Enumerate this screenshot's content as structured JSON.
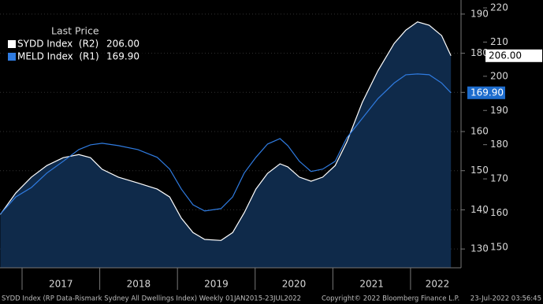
{
  "chart_data": {
    "type": "line",
    "legend_title": "Last Price",
    "x": [
      2016.72,
      2016.92,
      2017.12,
      2017.32,
      2017.53,
      2017.73,
      2017.88,
      2018.03,
      2018.24,
      2018.49,
      2018.74,
      2018.9,
      2019.05,
      2019.2,
      2019.35,
      2019.56,
      2019.71,
      2019.86,
      2020.01,
      2020.16,
      2020.32,
      2020.42,
      2020.57,
      2020.72,
      2020.87,
      2021.03,
      2021.18,
      2021.38,
      2021.58,
      2021.79,
      2021.94,
      2022.09,
      2022.24,
      2022.4,
      2022.52
    ],
    "xlim": [
      2016.716,
      2022.65
    ],
    "xticks": [
      2017,
      2018,
      2019,
      2020,
      2021,
      2022
    ],
    "series": [
      {
        "name": "SYDD Index  (R2)",
        "last_label": "206.00",
        "color": "#ffffff",
        "axis": "y2",
        "fill": "#0f2a4a",
        "values": [
          159.6,
          165.9,
          170.5,
          173.9,
          176.2,
          177.1,
          176.2,
          172.8,
          170.5,
          168.8,
          167.0,
          164.7,
          158.5,
          154.3,
          152.3,
          152.0,
          154.3,
          160.1,
          167.0,
          171.6,
          174.4,
          173.5,
          170.5,
          169.3,
          170.5,
          173.9,
          180.8,
          192.4,
          201.6,
          209.6,
          213.5,
          215.9,
          214.9,
          211.9,
          206.0
        ]
      },
      {
        "name": "MELD Index  (R1)",
        "last_label": "169.90",
        "color": "#2f7be0",
        "axis": "y",
        "values": [
          138.9,
          143.3,
          145.7,
          149.4,
          152.4,
          155.4,
          156.6,
          157.0,
          156.4,
          155.4,
          153.4,
          150.4,
          145.3,
          141.3,
          139.7,
          140.3,
          143.3,
          149.4,
          153.4,
          156.8,
          158.2,
          156.4,
          152.4,
          149.8,
          150.4,
          152.4,
          158.4,
          163.4,
          168.4,
          172.4,
          174.5,
          174.7,
          174.5,
          172.4,
          169.9
        ]
      }
    ],
    "ylim": [
      125.2,
      193.6
    ],
    "yticks": [
      130,
      140,
      150,
      160,
      170,
      180,
      190
    ],
    "y2lim": [
      144.0,
      222.3
    ],
    "y2ticks": [
      150,
      160,
      170,
      180,
      190,
      200,
      210,
      220
    ],
    "grid": true,
    "footer": {
      "left": "SYDD Index (RP Data-Rismark Sydney All Dwellings Index) Weekly 01JAN2015-23JUL2022",
      "center": "Copyright© 2022 Bloomberg Finance L.P.",
      "right": "23-Jul-2022 03:56:45"
    }
  }
}
